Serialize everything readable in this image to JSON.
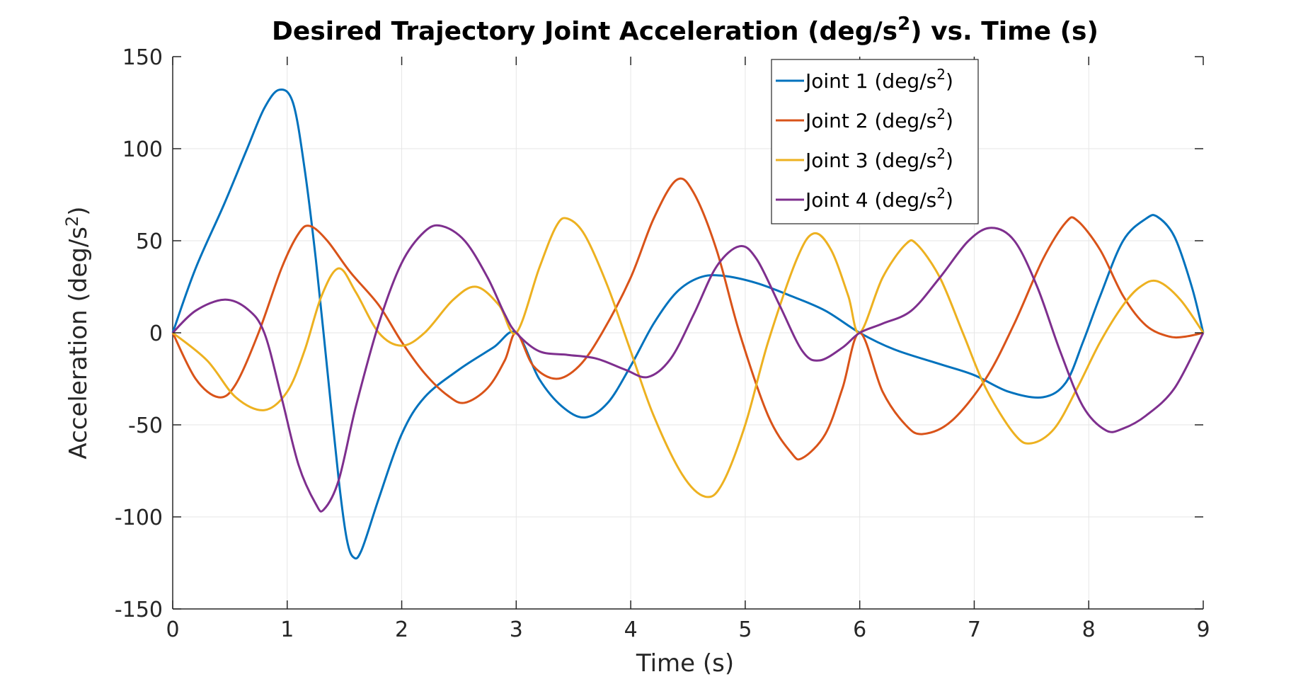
{
  "chart_data": {
    "type": "line",
    "title": "Desired Trajectory Joint Acceleration (deg/s",
    "title_sup": "2",
    "title_tail": ") vs. Time (s)",
    "xlabel": "Time (s)",
    "ylabel": "Acceleration (deg/s",
    "ylabel_sup": "2",
    "ylabel_tail": ")",
    "xlim": [
      0,
      9
    ],
    "ylim": [
      -150,
      150
    ],
    "x_ticks": [
      0,
      1,
      2,
      3,
      4,
      5,
      6,
      7,
      8,
      9
    ],
    "x_tick_labels": [
      "0",
      "1",
      "2",
      "3",
      "4",
      "5",
      "6",
      "7",
      "8",
      "9"
    ],
    "y_ticks": [
      -150,
      -100,
      -50,
      0,
      50,
      100,
      150
    ],
    "y_tick_labels": [
      "-150",
      "-100",
      "-50",
      "0",
      "50",
      "100",
      "150"
    ],
    "grid": true,
    "legend_position": "top-right",
    "series": [
      {
        "name": "Joint 1 (deg/s",
        "name_sup": "2",
        "name_tail": ")",
        "color": "#0072BD",
        "points": [
          [
            0,
            0
          ],
          [
            0.2,
            35
          ],
          [
            0.45,
            70
          ],
          [
            0.65,
            100
          ],
          [
            0.8,
            122
          ],
          [
            0.93,
            132
          ],
          [
            1.05,
            125
          ],
          [
            1.15,
            90
          ],
          [
            1.25,
            40
          ],
          [
            1.35,
            -20
          ],
          [
            1.45,
            -80
          ],
          [
            1.52,
            -112
          ],
          [
            1.58,
            -122
          ],
          [
            1.65,
            -118
          ],
          [
            1.8,
            -90
          ],
          [
            2.0,
            -55
          ],
          [
            2.2,
            -35
          ],
          [
            2.5,
            -20
          ],
          [
            2.8,
            -8
          ],
          [
            3.0,
            0
          ],
          [
            3.2,
            -25
          ],
          [
            3.4,
            -40
          ],
          [
            3.6,
            -46
          ],
          [
            3.8,
            -38
          ],
          [
            4.0,
            -18
          ],
          [
            4.2,
            5
          ],
          [
            4.4,
            22
          ],
          [
            4.6,
            30
          ],
          [
            4.8,
            31
          ],
          [
            5.1,
            27
          ],
          [
            5.4,
            20
          ],
          [
            5.7,
            12
          ],
          [
            6.0,
            0
          ],
          [
            6.3,
            -9
          ],
          [
            6.7,
            -17
          ],
          [
            7.0,
            -23
          ],
          [
            7.3,
            -32
          ],
          [
            7.6,
            -35
          ],
          [
            7.8,
            -27
          ],
          [
            7.95,
            -5
          ],
          [
            8.1,
            20
          ],
          [
            8.3,
            50
          ],
          [
            8.5,
            62
          ],
          [
            8.6,
            63
          ],
          [
            8.75,
            52
          ],
          [
            8.9,
            25
          ],
          [
            9.0,
            0
          ]
        ]
      },
      {
        "name": "Joint 2 (deg/s",
        "name_sup": "2",
        "name_tail": ")",
        "color": "#D95319",
        "points": [
          [
            0,
            0
          ],
          [
            0.2,
            -25
          ],
          [
            0.4,
            -35
          ],
          [
            0.55,
            -28
          ],
          [
            0.75,
            0
          ],
          [
            0.95,
            35
          ],
          [
            1.1,
            54
          ],
          [
            1.2,
            58
          ],
          [
            1.35,
            50
          ],
          [
            1.55,
            33
          ],
          [
            1.8,
            15
          ],
          [
            2.0,
            -5
          ],
          [
            2.2,
            -22
          ],
          [
            2.4,
            -34
          ],
          [
            2.55,
            -38
          ],
          [
            2.75,
            -30
          ],
          [
            2.9,
            -15
          ],
          [
            3.0,
            0
          ],
          [
            3.15,
            -18
          ],
          [
            3.35,
            -25
          ],
          [
            3.55,
            -18
          ],
          [
            3.75,
            0
          ],
          [
            4.0,
            30
          ],
          [
            4.2,
            62
          ],
          [
            4.4,
            83
          ],
          [
            4.55,
            76
          ],
          [
            4.75,
            45
          ],
          [
            4.95,
            0
          ],
          [
            5.2,
            -45
          ],
          [
            5.4,
            -65
          ],
          [
            5.5,
            -68
          ],
          [
            5.7,
            -55
          ],
          [
            5.85,
            -30
          ],
          [
            6.0,
            0
          ],
          [
            6.2,
            -32
          ],
          [
            6.4,
            -50
          ],
          [
            6.55,
            -55
          ],
          [
            6.8,
            -48
          ],
          [
            7.1,
            -25
          ],
          [
            7.35,
            5
          ],
          [
            7.6,
            40
          ],
          [
            7.8,
            60
          ],
          [
            7.9,
            61
          ],
          [
            8.1,
            45
          ],
          [
            8.3,
            20
          ],
          [
            8.5,
            4
          ],
          [
            8.7,
            -2
          ],
          [
            8.85,
            -2
          ],
          [
            9.0,
            0
          ]
        ]
      },
      {
        "name": "Joint 3 (deg/s",
        "name_sup": "2",
        "name_tail": ")",
        "color": "#EDB120",
        "points": [
          [
            0,
            0
          ],
          [
            0.3,
            -15
          ],
          [
            0.55,
            -35
          ],
          [
            0.8,
            -42
          ],
          [
            1.0,
            -32
          ],
          [
            1.15,
            -10
          ],
          [
            1.3,
            20
          ],
          [
            1.45,
            35
          ],
          [
            1.6,
            22
          ],
          [
            1.8,
            0
          ],
          [
            2.0,
            -7
          ],
          [
            2.2,
            0
          ],
          [
            2.45,
            18
          ],
          [
            2.65,
            25
          ],
          [
            2.85,
            15
          ],
          [
            3.0,
            0
          ],
          [
            3.2,
            35
          ],
          [
            3.35,
            58
          ],
          [
            3.45,
            62
          ],
          [
            3.6,
            53
          ],
          [
            3.8,
            25
          ],
          [
            4.0,
            -10
          ],
          [
            4.2,
            -45
          ],
          [
            4.45,
            -77
          ],
          [
            4.65,
            -89
          ],
          [
            4.8,
            -82
          ],
          [
            5.0,
            -50
          ],
          [
            5.2,
            -5
          ],
          [
            5.45,
            40
          ],
          [
            5.6,
            54
          ],
          [
            5.75,
            45
          ],
          [
            5.9,
            20
          ],
          [
            6.0,
            0
          ],
          [
            6.2,
            30
          ],
          [
            6.4,
            48
          ],
          [
            6.5,
            48
          ],
          [
            6.7,
            30
          ],
          [
            6.9,
            0
          ],
          [
            7.1,
            -30
          ],
          [
            7.35,
            -55
          ],
          [
            7.5,
            -60
          ],
          [
            7.7,
            -52
          ],
          [
            7.9,
            -30
          ],
          [
            8.1,
            -5
          ],
          [
            8.3,
            15
          ],
          [
            8.45,
            25
          ],
          [
            8.6,
            28
          ],
          [
            8.8,
            18
          ],
          [
            9.0,
            0
          ]
        ]
      },
      {
        "name": "Joint 4 (deg/s",
        "name_sup": "2",
        "name_tail": ")",
        "color": "#7E2F8E",
        "points": [
          [
            0,
            0
          ],
          [
            0.2,
            12
          ],
          [
            0.45,
            18
          ],
          [
            0.65,
            13
          ],
          [
            0.8,
            0
          ],
          [
            0.95,
            -35
          ],
          [
            1.1,
            -72
          ],
          [
            1.25,
            -93
          ],
          [
            1.32,
            -96
          ],
          [
            1.45,
            -80
          ],
          [
            1.6,
            -40
          ],
          [
            1.8,
            5
          ],
          [
            2.0,
            38
          ],
          [
            2.2,
            55
          ],
          [
            2.35,
            58
          ],
          [
            2.55,
            50
          ],
          [
            2.75,
            30
          ],
          [
            2.9,
            10
          ],
          [
            3.0,
            0
          ],
          [
            3.2,
            -10
          ],
          [
            3.45,
            -12
          ],
          [
            3.7,
            -14
          ],
          [
            3.95,
            -20
          ],
          [
            4.15,
            -24
          ],
          [
            4.35,
            -14
          ],
          [
            4.55,
            10
          ],
          [
            4.75,
            36
          ],
          [
            4.95,
            47
          ],
          [
            5.1,
            40
          ],
          [
            5.3,
            15
          ],
          [
            5.5,
            -10
          ],
          [
            5.65,
            -15
          ],
          [
            5.85,
            -8
          ],
          [
            6.0,
            0
          ],
          [
            6.2,
            5
          ],
          [
            6.45,
            12
          ],
          [
            6.7,
            30
          ],
          [
            6.95,
            50
          ],
          [
            7.15,
            57
          ],
          [
            7.35,
            50
          ],
          [
            7.55,
            25
          ],
          [
            7.75,
            -10
          ],
          [
            7.95,
            -40
          ],
          [
            8.15,
            -53
          ],
          [
            8.3,
            -52
          ],
          [
            8.5,
            -45
          ],
          [
            8.75,
            -30
          ],
          [
            9.0,
            0
          ]
        ]
      }
    ]
  }
}
